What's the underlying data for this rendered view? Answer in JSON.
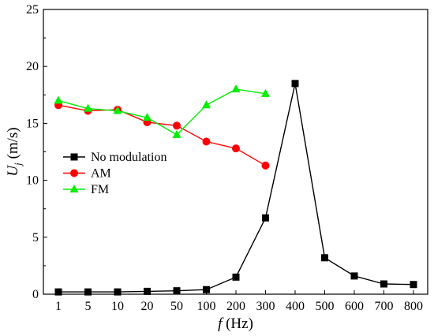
{
  "chart_data": {
    "type": "line",
    "categories": [
      "1",
      "5",
      "10",
      "20",
      "50",
      "100",
      "200",
      "300",
      "400",
      "500",
      "600",
      "700",
      "800"
    ],
    "xlabel": {
      "italic": "f",
      "rest": " (Hz)"
    },
    "ylabel": {
      "main": "U",
      "sub": "j",
      "rest": " (m/s)"
    },
    "ylim": [
      0,
      25
    ],
    "yticks": [
      0,
      5,
      10,
      15,
      20,
      25
    ],
    "grid": false,
    "legend_position": "left-middle",
    "series": [
      {
        "name": "No modulation",
        "color": "#000000",
        "marker": "square",
        "values": [
          0.2,
          0.2,
          0.2,
          0.25,
          0.3,
          0.4,
          1.5,
          6.7,
          18.5,
          3.2,
          1.6,
          0.9,
          0.85
        ]
      },
      {
        "name": "AM",
        "color": "#ff0000",
        "marker": "circle",
        "values": [
          16.6,
          16.1,
          16.2,
          15.1,
          14.8,
          13.4,
          12.8,
          11.3,
          null,
          null,
          null,
          null,
          null
        ]
      },
      {
        "name": "FM",
        "color": "#00ee00",
        "marker": "triangle",
        "values": [
          17.0,
          16.3,
          16.1,
          15.5,
          14.0,
          16.6,
          18.0,
          17.6,
          null,
          null,
          null,
          null,
          null
        ]
      }
    ]
  }
}
